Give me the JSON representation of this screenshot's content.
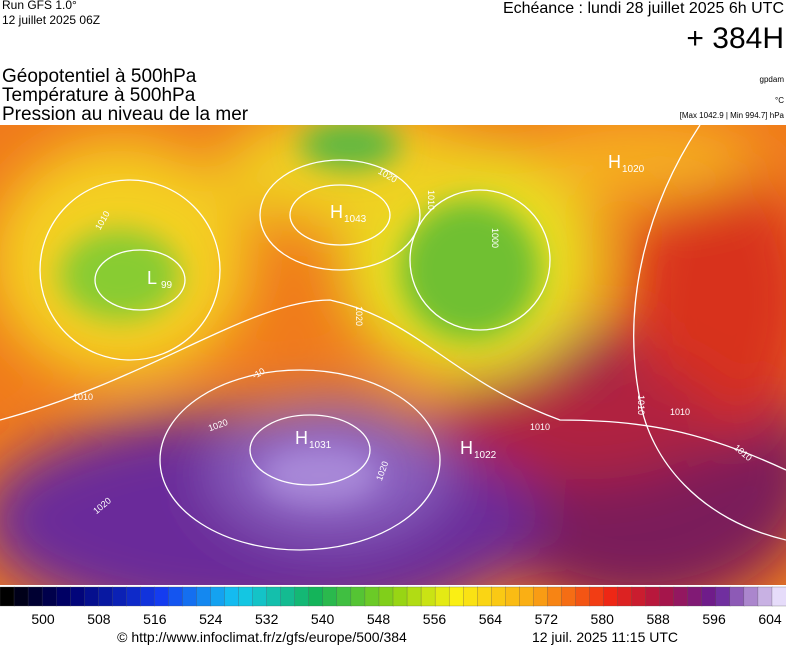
{
  "header": {
    "run": "Run GFS 1.0°",
    "date": "12 juillet 2025 06Z",
    "echeance": "Echéance : lundi 28 juillet 2025 6h UTC",
    "lead": "+ 384H"
  },
  "fields": [
    "Géopotentiel à 500hPa",
    "Température à 500hPa",
    "Pression au niveau de la mer"
  ],
  "units": [
    "gpdam",
    "°C",
    "[Max 1042.9 | Min 994.7] hPa"
  ],
  "map": {
    "pressure_centers": [
      {
        "label": "H",
        "value": "1043"
      },
      {
        "label": "H",
        "value": "1031"
      },
      {
        "label": "H",
        "value": "1022"
      },
      {
        "label": "H",
        "value": "1020"
      },
      {
        "label": "L",
        "value": "99"
      }
    ],
    "contour_labels": [
      "1010",
      "1020",
      "1020",
      "1020",
      "1010",
      "1010",
      "1010",
      "1010",
      "1020",
      "1010",
      "1000",
      "1020",
      "1010",
      "-10"
    ]
  },
  "colorbar": {
    "ticks": [
      500,
      508,
      516,
      524,
      532,
      540,
      548,
      556,
      564,
      572,
      580,
      588,
      596,
      604
    ]
  },
  "footer": {
    "url": "© http://www.infoclimat.fr/z/gfs/europe/500/384",
    "timestamp": "12 juil. 2025 11:15 UTC"
  }
}
